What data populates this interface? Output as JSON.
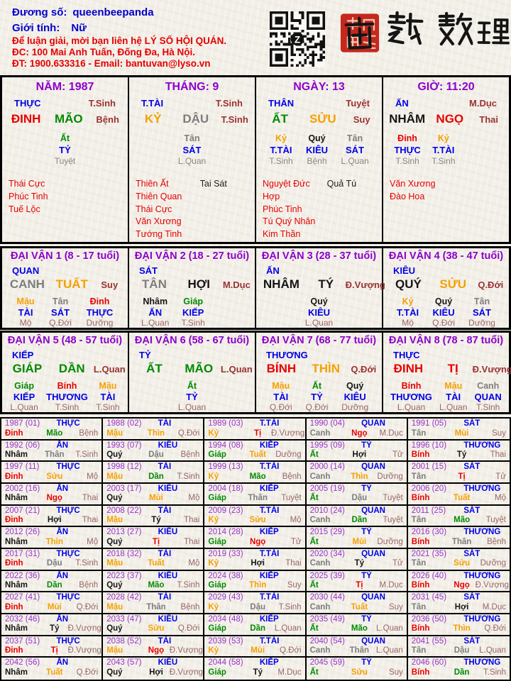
{
  "palette": {
    "headerBlue": "#0000cd",
    "headerRed": "#e60000",
    "blue": "#0000e8",
    "purple": "#8d00cc",
    "yearPurple": "#9933cc",
    "maroon": "#993333",
    "rose": "#996666",
    "hiddenGray": "#858585",
    "starRed": "#e60000",
    "starBlack": "#222222",
    "red": "#e80000",
    "green": "#008a00",
    "orange": "#f5a000",
    "gray": "#7d7d7d",
    "black": "#151515",
    "sealRed": "#c5281c",
    "ink": "#151515"
  },
  "canColor": {
    "giáp": "green",
    "ất": "green",
    "bính": "red",
    "đinh": "red",
    "mậu": "orange",
    "kỷ": "orange",
    "canh": "gray",
    "tân": "gray",
    "nhâm": "black",
    "quý": "black"
  },
  "chiColor": {
    "dần": "green",
    "mão": "green",
    "tị": "red",
    "ngọ": "red",
    "thìn": "orange",
    "tuất": "orange",
    "sửu": "orange",
    "mùi": "orange",
    "thân": "gray",
    "dậu": "gray",
    "hợi": "black",
    "tý": "black"
  },
  "header": {
    "field1_label": "Đương số:",
    "field1_value": "queenbeepanda",
    "field2_label": "Giới tính:",
    "field2_value": "Nữ",
    "contact_line1": "Để luận giải, mời bạn liên hệ LÝ SỐ HỘI QUÁN.",
    "contact_line2": "ĐC: 100 Mai Anh Tuấn, Đống Đa, Hà Nội.",
    "contact_line3": "ĐT: 1900.633316 - Email: bantuvan@lyso.vn",
    "logo_text": "南越數理"
  },
  "pillars": [
    {
      "key": "nam",
      "title": "NĂM: 1987",
      "god": "THỰC",
      "topState": "T.Sinh",
      "can": "ĐINH",
      "chi": "MÃO",
      "state": "Bệnh",
      "hidden": [
        [
          "Ất",
          "TỶ",
          "Tuyệt"
        ]
      ],
      "starsRed": [
        "Thái Cực",
        "Phúc Tinh",
        "Tuế Lộc"
      ],
      "starsBlack": []
    },
    {
      "key": "thang",
      "title": "THÁNG: 9",
      "god": "T.TÀI",
      "topState": "T.Sinh",
      "can": "KỶ",
      "chi": "DẬU",
      "state": "T.Sinh",
      "hidden": [
        [
          "Tân",
          "SÁT",
          "L.Quan"
        ]
      ],
      "starsRed": [
        "Thiên Ất",
        "Thiên Quan",
        "Thái Cực",
        "Văn Xương",
        "Tướng Tinh"
      ],
      "starsBlack": [
        "Tai Sát"
      ]
    },
    {
      "key": "ngay",
      "title": "NGÀY: 13",
      "god": "THÂN",
      "topState": "Tuyệt",
      "can": "ẤT",
      "chi": "SỬU",
      "state": "Suy",
      "hidden": [
        [
          "Kỷ",
          "T.TÀI",
          "T.Sinh"
        ],
        [
          "Quý",
          "KIÊU",
          "Bệnh"
        ],
        [
          "Tân",
          "SÁT",
          "L.Quan"
        ]
      ],
      "starsRed": [
        "Nguyệt Đức Hợp",
        "Phúc Tinh",
        "Tú Quý Nhân",
        "Kim Thần"
      ],
      "starsBlack": [
        "Quả Tú"
      ]
    },
    {
      "key": "gio",
      "title": "GIỜ: 11:20",
      "god": "ẤN",
      "topState": "M.Dục",
      "can": "NHÂM",
      "chi": "NGỌ",
      "state": "Thai",
      "hidden": [
        [
          "Đinh",
          "THỰC",
          "T.Sinh"
        ],
        [
          "Kỷ",
          "T.TÀI",
          "T.Sinh"
        ]
      ],
      "starsRed": [
        "Văn Xương",
        "Đào Hoa"
      ],
      "starsBlack": []
    }
  ],
  "dai_van": [
    {
      "title": "ĐẠI VẬN 1 (8 - 17 tuổi)",
      "god": "QUAN",
      "can": "CANH",
      "chi": "TUẤT",
      "state": "Suy",
      "hidden": [
        [
          "Mậu",
          "TÀI",
          "Mộ"
        ],
        [
          "Tân",
          "SÁT",
          "Q.Đới"
        ],
        [
          "Đinh",
          "THỰC",
          "Dưỡng"
        ]
      ]
    },
    {
      "title": "ĐẠI VẬN 2 (18 - 27 tuổi)",
      "god": "SÁT",
      "can": "TÂN",
      "chi": "HỢI",
      "state": "M.Dục",
      "hidden": [
        [
          "Nhâm",
          "ẤN",
          "L.Quan"
        ],
        [
          "Giáp",
          "KIẾP",
          "T.Sinh"
        ]
      ]
    },
    {
      "title": "ĐẠI VẬN 3 (28 - 37 tuổi)",
      "god": "ẤN",
      "can": "NHÂM",
      "chi": "TÝ",
      "state": "Đ.Vượng",
      "hidden": [
        [
          "Quý",
          "KIÊU",
          "L.Quan"
        ]
      ]
    },
    {
      "title": "ĐẠI VẬN 4 (38 - 47 tuổi)",
      "god": "KIÊU",
      "can": "QUÝ",
      "chi": "SỬU",
      "state": "Q.Đới",
      "hidden": [
        [
          "Kỷ",
          "T.TÀI",
          "Mộ"
        ],
        [
          "Quý",
          "KIÊU",
          "Q.Đới"
        ],
        [
          "Tân",
          "SÁT",
          "Dưỡng"
        ]
      ]
    },
    {
      "title": "ĐẠI VẬN 5 (48 - 57 tuổi)",
      "god": "KIẾP",
      "can": "GIÁP",
      "chi": "DẦN",
      "state": "L.Quan",
      "hidden": [
        [
          "Giáp",
          "KIẾP",
          "L.Quan"
        ],
        [
          "Bính",
          "THƯƠNG",
          "T.Sinh"
        ],
        [
          "Mậu",
          "TÀI",
          "T.Sinh"
        ]
      ]
    },
    {
      "title": "ĐẠI VẬN 6 (58 - 67 tuổi)",
      "god": "TỶ",
      "can": "ẤT",
      "chi": "MÃO",
      "state": "L.Quan",
      "hidden": [
        [
          "Ất",
          "TỶ",
          "L.Quan"
        ]
      ]
    },
    {
      "title": "ĐẠI VẬN 7 (68 - 77 tuổi)",
      "god": "THƯƠNG",
      "can": "BÍNH",
      "chi": "THÌN",
      "state": "Q.Đới",
      "hidden": [
        [
          "Mậu",
          "TÀI",
          "Q.Đới"
        ],
        [
          "Ất",
          "TỶ",
          "Q.Đới"
        ],
        [
          "Quý",
          "KIÊU",
          "Dưỡng"
        ]
      ]
    },
    {
      "title": "ĐẠI VẬN 8 (78 - 87 tuổi)",
      "god": "THỰC",
      "can": "ĐINH",
      "chi": "TỊ",
      "state": "Đ.Vượng",
      "hidden": [
        [
          "Bính",
          "THƯƠNG",
          "L.Quan"
        ],
        [
          "Mậu",
          "TÀI",
          "L.Quan"
        ],
        [
          "Canh",
          "QUAN",
          "T.Sinh"
        ]
      ]
    }
  ],
  "years": [
    [
      "1987 (01)",
      "THỰC",
      "Đinh",
      "Mão",
      "Bệnh"
    ],
    [
      "1988 (02)",
      "TÀI",
      "Mậu",
      "Thìn",
      "Q.Đới"
    ],
    [
      "1989 (03)",
      "T.TÀI",
      "Kỷ",
      "Tị",
      "Đ.Vượng"
    ],
    [
      "1990 (04)",
      "QUAN",
      "Canh",
      "Ngọ",
      "M.Dục"
    ],
    [
      "1991 (05)",
      "SÁT",
      "Tân",
      "Mùi",
      "Suy"
    ],
    [
      "1992 (06)",
      "ẤN",
      "Nhâm",
      "Thân",
      "T.Sinh"
    ],
    [
      "1993 (07)",
      "KIÊU",
      "Quý",
      "Dậu",
      "Bệnh"
    ],
    [
      "1994 (08)",
      "KIẾP",
      "Giáp",
      "Tuất",
      "Dưỡng"
    ],
    [
      "1995 (09)",
      "TỶ",
      "Ất",
      "Hợi",
      "Tử"
    ],
    [
      "1996 (10)",
      "THƯƠNG",
      "Bính",
      "Tý",
      "Thai"
    ],
    [
      "1997 (11)",
      "THỰC",
      "Đinh",
      "Sửu",
      "Mộ"
    ],
    [
      "1998 (12)",
      "TÀI",
      "Mậu",
      "Dần",
      "T.Sinh"
    ],
    [
      "1999 (13)",
      "T.TÀI",
      "Kỷ",
      "Mão",
      "Bệnh"
    ],
    [
      "2000 (14)",
      "QUAN",
      "Canh",
      "Thìn",
      "Dưỡng"
    ],
    [
      "2001 (15)",
      "SÁT",
      "Tân",
      "Tị",
      "Tử"
    ],
    [
      "2002 (16)",
      "ẤN",
      "Nhâm",
      "Ngọ",
      "Thai"
    ],
    [
      "2003 (17)",
      "KIÊU",
      "Quý",
      "Mùi",
      "Mộ"
    ],
    [
      "2004 (18)",
      "KIẾP",
      "Giáp",
      "Thân",
      "Tuyệt"
    ],
    [
      "2005 (19)",
      "TỶ",
      "Ất",
      "Dậu",
      "Tuyệt"
    ],
    [
      "2006 (20)",
      "THƯƠNG",
      "Bính",
      "Tuất",
      "Mộ"
    ],
    [
      "2007 (21)",
      "THỰC",
      "Đinh",
      "Hợi",
      "Thai"
    ],
    [
      "2008 (22)",
      "TÀI",
      "Mậu",
      "Tý",
      "Thai"
    ],
    [
      "2009 (23)",
      "T.TÀI",
      "Kỷ",
      "Sửu",
      "Mộ"
    ],
    [
      "2010 (24)",
      "QUAN",
      "Canh",
      "Dần",
      "Tuyệt"
    ],
    [
      "2011 (25)",
      "SÁT",
      "Tân",
      "Mão",
      "Tuyệt"
    ],
    [
      "2012 (26)",
      "ẤN",
      "Nhâm",
      "Thìn",
      "Mộ"
    ],
    [
      "2013 (27)",
      "KIÊU",
      "Quý",
      "Tị",
      "Thai"
    ],
    [
      "2014 (28)",
      "KIẾP",
      "Giáp",
      "Ngọ",
      "Tử"
    ],
    [
      "2015 (29)",
      "TỶ",
      "Ất",
      "Mùi",
      "Dưỡng"
    ],
    [
      "2016 (30)",
      "THƯƠNG",
      "Bính",
      "Thân",
      "Bệnh"
    ],
    [
      "2017 (31)",
      "THỰC",
      "Đinh",
      "Dậu",
      "T.Sinh"
    ],
    [
      "2018 (32)",
      "TÀI",
      "Mậu",
      "Tuất",
      "Mộ"
    ],
    [
      "2019 (33)",
      "T.TÀI",
      "Kỷ",
      "Hợi",
      "Thai"
    ],
    [
      "2020 (34)",
      "QUAN",
      "Canh",
      "Tý",
      "Tử"
    ],
    [
      "2021 (35)",
      "SÁT",
      "Tân",
      "Sửu",
      "Dưỡng"
    ],
    [
      "2022 (36)",
      "ẤN",
      "Nhâm",
      "Dần",
      "Bệnh"
    ],
    [
      "2023 (37)",
      "KIÊU",
      "Quý",
      "Mão",
      "T.Sinh"
    ],
    [
      "2024 (38)",
      "KIẾP",
      "Giáp",
      "Thìn",
      "Suy"
    ],
    [
      "2025 (39)",
      "TỶ",
      "Ất",
      "Tị",
      "M.Dục"
    ],
    [
      "2026 (40)",
      "THƯƠNG",
      "Bính",
      "Ngọ",
      "Đ.Vượng"
    ],
    [
      "2027 (41)",
      "THỰC",
      "Đinh",
      "Mùi",
      "Q.Đới"
    ],
    [
      "2028 (42)",
      "TÀI",
      "Mậu",
      "Thân",
      "Bệnh"
    ],
    [
      "2029 (43)",
      "T.TÀI",
      "Kỷ",
      "Dậu",
      "T.Sinh"
    ],
    [
      "2030 (44)",
      "QUAN",
      "Canh",
      "Tuất",
      "Suy"
    ],
    [
      "2031 (45)",
      "SÁT",
      "Tân",
      "Hợi",
      "M.Dục"
    ],
    [
      "2032 (46)",
      "ẤN",
      "Nhâm",
      "Tý",
      "Đ.Vượng"
    ],
    [
      "2033 (47)",
      "KIÊU",
      "Quý",
      "Sửu",
      "Q.Đới"
    ],
    [
      "2034 (48)",
      "KIẾP",
      "Giáp",
      "Dần",
      "L.Quan"
    ],
    [
      "2035 (49)",
      "TỶ",
      "Ất",
      "Mão",
      "L.Quan"
    ],
    [
      "2036 (50)",
      "THƯƠNG",
      "Bính",
      "Thìn",
      "Q.Đới"
    ],
    [
      "2037 (51)",
      "THỰC",
      "Đinh",
      "Tị",
      "Đ.Vượng"
    ],
    [
      "2038 (52)",
      "TÀI",
      "Mậu",
      "Ngọ",
      "Đ.Vượng"
    ],
    [
      "2039 (53)",
      "T.TÀI",
      "Kỷ",
      "Mùi",
      "Q.Đới"
    ],
    [
      "2040 (54)",
      "QUAN",
      "Canh",
      "Thân",
      "L.Quan"
    ],
    [
      "2041 (55)",
      "SÁT",
      "Tân",
      "Dậu",
      "L.Quan"
    ],
    [
      "2042 (56)",
      "ẤN",
      "Nhâm",
      "Tuất",
      "Q.Đới"
    ],
    [
      "2043 (57)",
      "KIÊU",
      "Quý",
      "Hợi",
      "Đ.Vượng"
    ],
    [
      "2044 (58)",
      "KIẾP",
      "Giáp",
      "Tý",
      "M.Dục"
    ],
    [
      "2045 (59)",
      "TỶ",
      "Ất",
      "Sửu",
      "Suy"
    ],
    [
      "2046 (60)",
      "THƯƠNG",
      "Bính",
      "Dần",
      "T.Sinh"
    ]
  ]
}
